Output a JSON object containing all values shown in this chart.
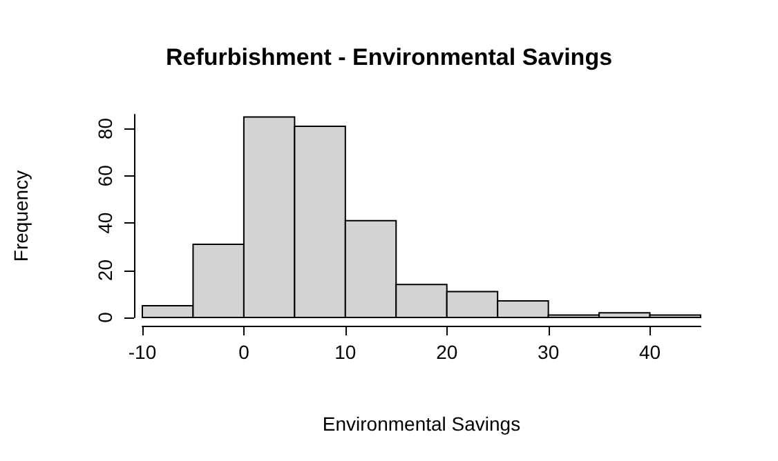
{
  "chart_data": {
    "type": "histogram",
    "title": "Refurbishment - Environmental Savings",
    "xlabel": "Environmental Savings",
    "ylabel": "Frequency",
    "bins": [
      -10,
      -5,
      0,
      5,
      10,
      15,
      20,
      25,
      30,
      35,
      40,
      45
    ],
    "values": [
      5,
      31,
      85,
      81,
      41,
      14,
      11,
      7,
      1,
      2,
      1
    ],
    "color": "#d3d3d3",
    "xlim": [
      -10,
      45
    ],
    "xticks": [
      -10,
      0,
      10,
      20,
      30,
      40
    ],
    "ylim": [
      0,
      86
    ],
    "yticks": [
      0,
      20,
      40,
      60,
      80
    ],
    "grid": false
  }
}
